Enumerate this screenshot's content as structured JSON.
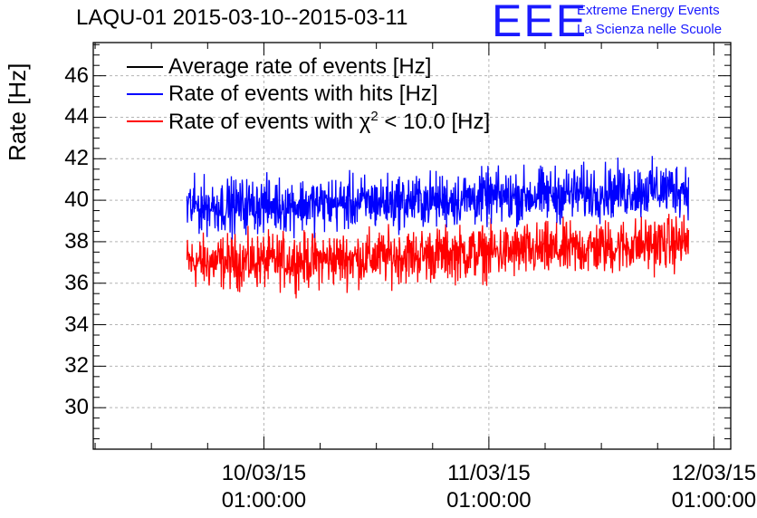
{
  "chart_data": {
    "type": "line",
    "title": "LAQU-01 2015-03-10--2015-03-11",
    "xlabel": "",
    "ylabel": "Rate [Hz]",
    "ylim": [
      28,
      47.6
    ],
    "yticks": [
      "30",
      "32",
      "34",
      "36",
      "38",
      "40",
      "42",
      "44",
      "46"
    ],
    "xticks": [
      {
        "date": "10/03/15",
        "time": "01:00:00"
      },
      {
        "date": "11/03/15",
        "time": "01:00:00"
      },
      {
        "date": "12/03/15",
        "time": "01:00:00"
      }
    ],
    "xlim_hours": [
      -18.2,
      49.8
    ],
    "grid": true,
    "legend_position": "top-left",
    "series": [
      {
        "name": "Average rate of events [Hz]",
        "color": "#000000",
        "mean": [],
        "x_range_hours": []
      },
      {
        "name": "Rate of events with hits [Hz]",
        "color": "#0000ff",
        "mean": [
          39.7,
          39.8,
          40.0,
          40.3,
          40.6
        ],
        "noise": 0.8,
        "x_range_hours": [
          -8.2,
          45.3
        ]
      },
      {
        "name_prefix": "Rate of events with ",
        "name_symbol": "χ",
        "name_sup": "2",
        "name_suffix": " < 10.0 [Hz]",
        "color": "#ff0000",
        "mean": [
          37.0,
          37.1,
          37.4,
          37.6,
          38.0
        ],
        "noise": 0.8,
        "x_range_hours": [
          -8.2,
          45.3
        ]
      }
    ]
  },
  "logo": {
    "letters": "EEE",
    "line1": "Extreme Energy Events",
    "line2": "La Scienza nelle Scuole",
    "color": "#1a1aff"
  }
}
